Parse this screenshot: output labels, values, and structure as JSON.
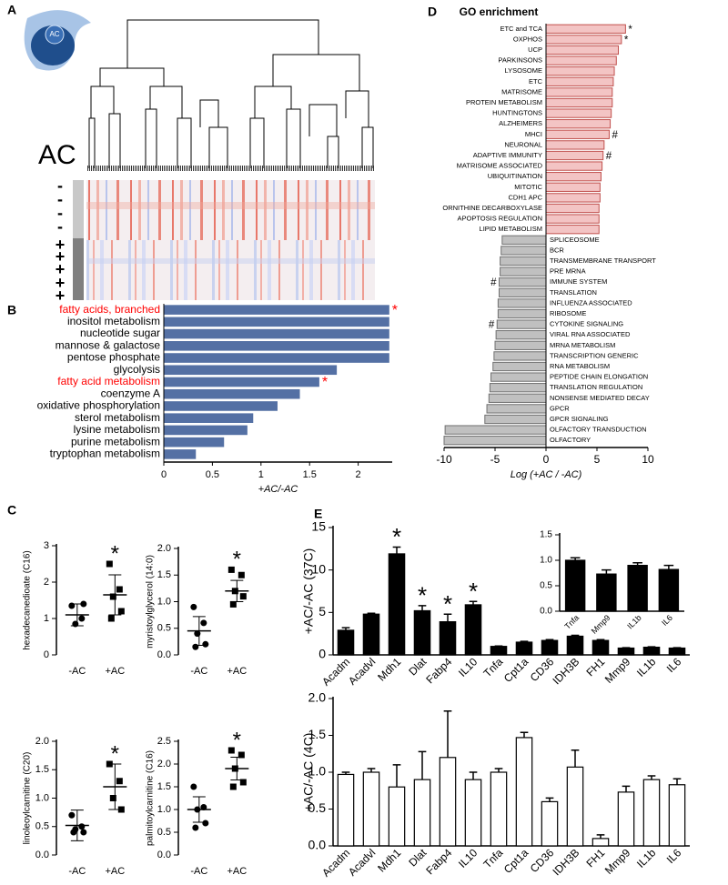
{
  "panel_labels": [
    "A",
    "B",
    "C",
    "D",
    "E"
  ],
  "panel_a": {
    "icon_label": "AC",
    "group_label": "AC",
    "rows": [
      "-",
      "-",
      "-",
      "-",
      "+",
      "+",
      "+",
      "+",
      "+"
    ]
  },
  "chart_data": [
    {
      "type": "bar",
      "orientation": "horizontal",
      "categories": [
        "fatty acids, branched",
        "inositol metabolism",
        "nucleotide sugar",
        "mannose & galactose",
        "pentose phosphate",
        "glycolysis",
        "fatty acid metabolism",
        "coenzyme A",
        "oxidative phosphorylation",
        "sterol metabolism",
        "lysine metabolism",
        "purine metabolism",
        "tryptophan metabolism"
      ],
      "values": [
        2.32,
        2.32,
        2.32,
        2.32,
        2.32,
        1.78,
        1.6,
        1.4,
        1.17,
        0.92,
        0.86,
        0.62,
        0.33
      ],
      "label_colors": [
        "#ff0000",
        "#000000",
        "#000000",
        "#000000",
        "#000000",
        "#000000",
        "#ff0000",
        "#000000",
        "#000000",
        "#000000",
        "#000000",
        "#000000",
        "#000000"
      ],
      "annotations": [
        "*",
        null,
        null,
        null,
        null,
        null,
        "*",
        null,
        null,
        null,
        null,
        null,
        null
      ],
      "annotation_color": "#ff0000",
      "color": "#5470a4",
      "xlim": [
        0,
        2.35
      ],
      "xticks": [
        0,
        0.5,
        1,
        1.5,
        2
      ],
      "xlabel": "+AC/-AC"
    },
    {
      "type": "dot",
      "ylabel": "hexadecanedioate (C16)",
      "categories": [
        "-AC",
        "+AC"
      ],
      "ylim": [
        0,
        3
      ],
      "yticks": [
        0,
        1,
        2,
        3
      ],
      "groups": [
        {
          "marker": "circle",
          "values": [
            1.35,
            1.0,
            0.85,
            1.4
          ],
          "mean": 1.1,
          "error": 0.3,
          "annotation": null
        },
        {
          "marker": "square",
          "values": [
            2.5,
            1.8,
            1.6,
            1.2,
            1.0
          ],
          "mean": 1.65,
          "error": 0.55,
          "annotation": "*"
        }
      ]
    },
    {
      "type": "dot",
      "ylabel": "myristoylglycerol (14:0)",
      "categories": [
        "-AC",
        "+AC"
      ],
      "ylim": [
        0,
        2
      ],
      "yticks": [
        {
          "value": 0,
          "label": "0.0"
        },
        {
          "value": 0.5,
          "label": "0.5"
        },
        {
          "value": 1,
          "label": "1.0"
        },
        {
          "value": 1.5,
          "label": "1.5"
        },
        {
          "value": 2,
          "label": "2.0"
        }
      ],
      "groups": [
        {
          "marker": "circle",
          "values": [
            0.9,
            0.6,
            0.4,
            0.2,
            0.15
          ],
          "mean": 0.45,
          "error": 0.27,
          "annotation": null
        },
        {
          "marker": "square",
          "values": [
            1.6,
            1.5,
            1.2,
            1.1,
            0.95
          ],
          "mean": 1.2,
          "error": 0.2,
          "annotation": "*"
        }
      ]
    },
    {
      "type": "dot",
      "ylabel": "linoleoylcarnitine (C20)",
      "categories": [
        "-AC",
        "+AC"
      ],
      "ylim": [
        0,
        2
      ],
      "yticks": [
        {
          "value": 0,
          "label": "0.0"
        },
        {
          "value": 0.5,
          "label": "0.5"
        },
        {
          "value": 1,
          "label": "1.0"
        },
        {
          "value": 1.5,
          "label": "1.5"
        },
        {
          "value": 2,
          "label": "2.0"
        }
      ],
      "groups": [
        {
          "marker": "circle",
          "values": [
            0.7,
            0.5,
            0.45,
            0.4,
            0.4
          ],
          "mean": 0.52,
          "error": 0.27,
          "annotation": null
        },
        {
          "marker": "square",
          "values": [
            1.6,
            1.3,
            1.0,
            0.8
          ],
          "mean": 1.2,
          "error": 0.4,
          "annotation": "*"
        }
      ]
    },
    {
      "type": "dot",
      "ylabel": "palmitoylcarnitine (C16)",
      "categories": [
        "-AC",
        "+AC"
      ],
      "ylim": [
        0,
        2.5
      ],
      "yticks": [
        {
          "value": 0,
          "label": "0.0"
        },
        {
          "value": 0.5,
          "label": "0.5"
        },
        {
          "value": 1,
          "label": "1.0"
        },
        {
          "value": 1.5,
          "label": "1.5"
        },
        {
          "value": 2,
          "label": "2.0"
        },
        {
          "value": 2.5,
          "label": "2.5"
        }
      ],
      "groups": [
        {
          "marker": "circle",
          "values": [
            1.5,
            1.05,
            1.0,
            0.7,
            0.6
          ],
          "mean": 1.0,
          "error": 0.28,
          "annotation": null
        },
        {
          "marker": "square",
          "values": [
            2.3,
            2.2,
            1.9,
            1.6,
            1.5
          ],
          "mean": 1.9,
          "error": 0.25,
          "annotation": "*"
        }
      ]
    },
    {
      "type": "bar",
      "orientation": "horizontal",
      "title": "GO enrichment",
      "categories": [
        "ETC and TCA",
        "OXPHOS",
        "UCP",
        "PARKINSONS",
        "LYSOSOME",
        "ETC",
        "MATRISOME",
        "PROTEIN METABOLISM",
        "HUNTINGTONS",
        "ALZHEIMERS",
        "MHCI",
        "NEURONAL",
        "ADAPTIVE IMMUNITY",
        "MATRISOME ASSOCIATED",
        "UBIQUITINATION",
        "MITOTIC",
        "CDH1 APC",
        "ORNITHINE DECARBOXYLASE",
        "APOPTOSIS REGULATION",
        "LIPID METABOLISM",
        "SPLICEOSOME",
        "BCR",
        "TRANSMEMBRANE TRANSPORT",
        "PRE MRNA",
        "IMMUNE SYSTEM",
        "TRANSLATION",
        "INFLUENZA ASSOCIATED",
        "RIBOSOME",
        "CYTOKINE SIGNALING",
        "VIRAL RNA ASSOCIATED",
        "MRNA METABOLISM",
        "TRANSCRIPTION GENERIC",
        "RNA METABOLISM",
        "PEPTIDE CHAIN ELONGATION",
        "TRANSLATION REGULATION",
        "NONSENSE MEDIATED DECAY",
        "GPCR",
        "GPCR SIGNALING",
        "OLFACTORY TRANSDUCTION",
        "OLFACTORY"
      ],
      "values": [
        7.8,
        7.4,
        7.1,
        6.9,
        6.7,
        6.6,
        6.5,
        6.5,
        6.4,
        6.3,
        6.2,
        5.7,
        5.6,
        5.5,
        5.4,
        5.3,
        5.3,
        5.2,
        5.2,
        5.2,
        -4.3,
        -4.4,
        -4.5,
        -4.5,
        -4.6,
        -4.6,
        -4.7,
        -4.7,
        -4.8,
        -4.9,
        -5.0,
        -5.1,
        -5.2,
        -5.4,
        -5.5,
        -5.6,
        -5.8,
        -6.0,
        -9.9,
        -10.0
      ],
      "annotations": [
        "*",
        "*",
        null,
        null,
        null,
        null,
        null,
        null,
        null,
        null,
        "#",
        null,
        "#",
        null,
        null,
        null,
        null,
        null,
        null,
        null,
        null,
        null,
        null,
        null,
        "#",
        null,
        null,
        null,
        "#",
        null,
        null,
        null,
        null,
        null,
        null,
        null,
        null,
        null,
        null,
        null
      ],
      "annotation_color": "#000000",
      "color": "#f3c4c4",
      "stroke": "#c0504d",
      "negative_color": "#c0c0c0",
      "negative_stroke": "#707070",
      "xlim": [
        -10,
        10
      ],
      "xticks": [
        -10,
        -5,
        0,
        5,
        10
      ],
      "xlabel": "Log (+AC / -AC)"
    },
    {
      "type": "bar",
      "orientation": "vertical",
      "ylabel": "+AC/-AC (37C)",
      "categories": [
        "Acadm",
        "Acadvl",
        "Mdh1",
        "Dlat",
        "Fabp4",
        "IL10",
        "Tnfa",
        "Cpt1a",
        "CD36",
        "IDH3B",
        "FH1",
        "Mmp9",
        "IL1b",
        "IL6"
      ],
      "values": [
        2.9,
        4.8,
        11.9,
        5.2,
        3.9,
        5.9,
        1.0,
        1.5,
        1.7,
        2.2,
        1.7,
        0.8,
        0.9,
        0.8
      ],
      "errors": [
        0.3,
        0.1,
        0.8,
        0.6,
        0.9,
        0.4,
        0.05,
        0.1,
        0.1,
        0.1,
        0.1,
        0.05,
        0.05,
        0.05
      ],
      "annotations": [
        null,
        null,
        "*",
        "*",
        "*",
        "*",
        null,
        null,
        null,
        null,
        null,
        null,
        null,
        null
      ],
      "color": "#000000",
      "ylim": [
        0,
        15
      ],
      "yticks": [
        0,
        5,
        10,
        15
      ]
    },
    {
      "type": "bar",
      "orientation": "vertical",
      "categories": [
        "Tnfa",
        "Mmp9",
        "IL1b",
        "IL6"
      ],
      "values": [
        1.0,
        0.73,
        0.9,
        0.82
      ],
      "errors": [
        0.05,
        0.08,
        0.05,
        0.08
      ],
      "color": "#000000",
      "ylim": [
        0,
        1.5
      ],
      "yticks": [
        {
          "value": 0,
          "label": "0.0"
        },
        {
          "value": 0.5,
          "label": "0.5"
        },
        {
          "value": 1,
          "label": "1.0"
        },
        {
          "value": 1.5,
          "label": "1.5"
        }
      ]
    },
    {
      "type": "bar",
      "orientation": "vertical",
      "ylabel": "+AC/-AC (4C)",
      "categories": [
        "Acadm",
        "Acadvl",
        "Mdh1",
        "Dlat",
        "Fabp4",
        "IL10",
        "Tnfa",
        "Cpt1a",
        "CD36",
        "IDH3B",
        "FH1",
        "Mmp9",
        "IL1b",
        "IL6"
      ],
      "values": [
        0.97,
        1.0,
        0.8,
        0.9,
        1.2,
        0.9,
        1.0,
        1.47,
        0.6,
        1.07,
        0.1,
        0.73,
        0.9,
        0.83
      ],
      "errors": [
        0.03,
        0.05,
        0.3,
        0.38,
        0.63,
        0.1,
        0.05,
        0.07,
        0.05,
        0.23,
        0.05,
        0.08,
        0.05,
        0.08
      ],
      "color": "#ffffff",
      "ylim": [
        0,
        2
      ],
      "yticks": [
        {
          "value": 0,
          "label": "0.0"
        },
        {
          "value": 0.5,
          "label": "0.5"
        },
        {
          "value": 1,
          "label": "1.0"
        },
        {
          "value": 1.5,
          "label": "1.5"
        },
        {
          "value": 2,
          "label": "2.0"
        }
      ]
    }
  ]
}
